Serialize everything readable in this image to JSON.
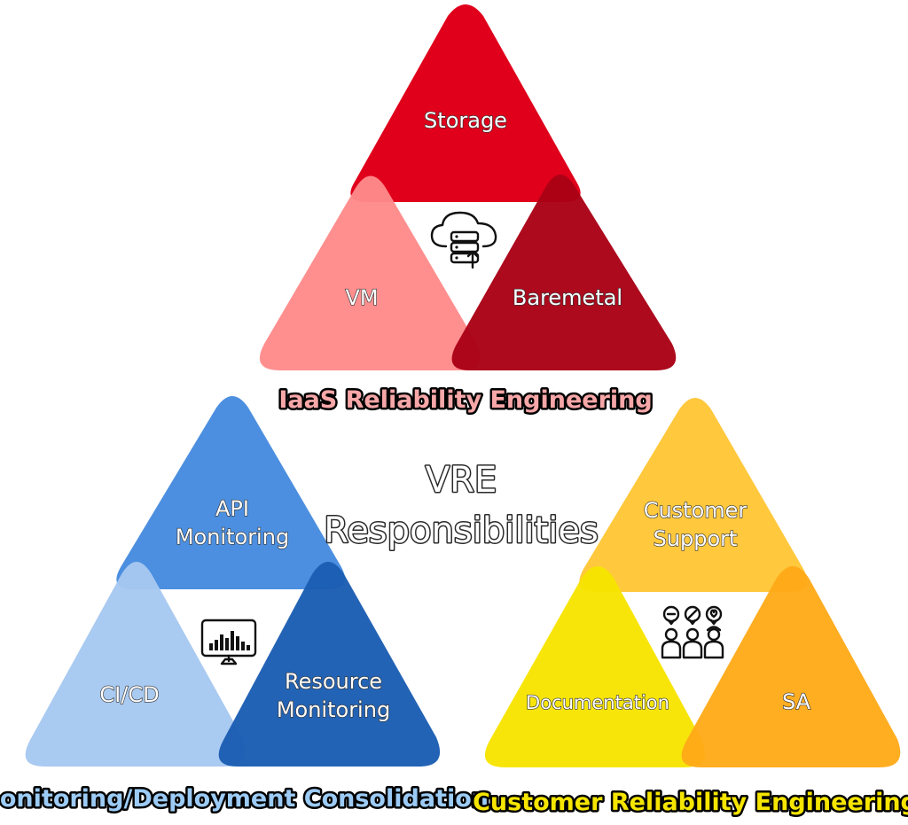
{
  "center": {
    "line1": "VRE",
    "line2": "Responsibilities"
  },
  "groups": {
    "iaas": {
      "caption": "IaaS Reliability Engineering",
      "caption_color": "#f7a7a8",
      "top": "Storage",
      "left": "VM",
      "right": "Baremetal",
      "icon": "cloud-server-icon",
      "colors": {
        "top": "#e0001b",
        "left": "#ff8a8a",
        "right": "#aa0015"
      }
    },
    "monitoring": {
      "caption": "Monitoring/Deployment Consolidation",
      "caption_color": "#9ccbf5",
      "top_line1": "API",
      "top_line2": "Monitoring",
      "left": "CI/CD",
      "right_line1": "Resource",
      "right_line2": "Monitoring",
      "icon": "monitor-chart-icon",
      "colors": {
        "top": "#4c8fe0",
        "left": "#a6c8f0",
        "right": "#1a5db2"
      }
    },
    "customer": {
      "caption": "Customer Reliability Engineering",
      "caption_color": "#f5e500",
      "top_line1": "Customer",
      "top_line2": "Support",
      "left": "Documentation",
      "right": "SA",
      "icon": "support-team-icon",
      "colors": {
        "top": "#ffc83d",
        "left": "#f7e400",
        "right": "#ffaa18"
      }
    }
  }
}
